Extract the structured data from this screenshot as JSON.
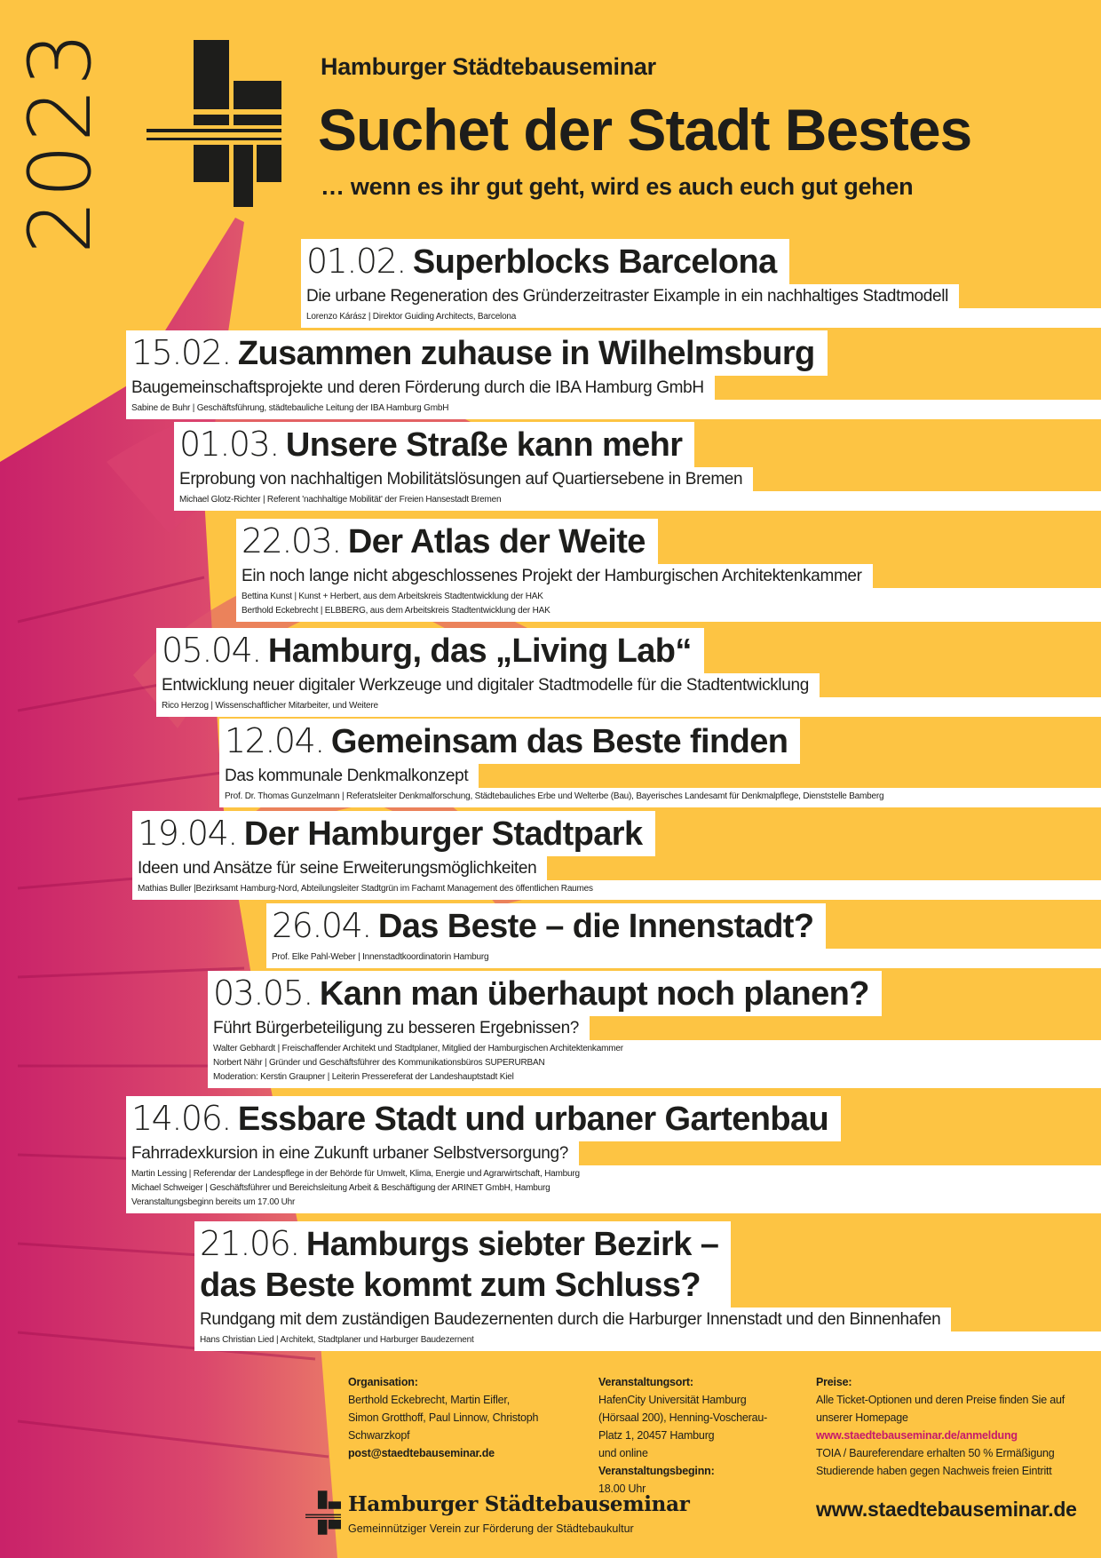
{
  "colors": {
    "background": "#fdc443",
    "structure": "#c6196b",
    "text": "#1d1d1b",
    "link": "#c6196b"
  },
  "header": {
    "year": "2023",
    "organization": "Hamburger Städtebauseminar",
    "title": "Suchet der Stadt Bestes",
    "subtitle": "… wenn es ihr gut geht, wird es auch euch gut gehen",
    "logo_icon": "city-grid-logo-icon"
  },
  "events": [
    {
      "date": "01.02.",
      "title": "Superblocks Barcelona",
      "subtitle": "Die urbane Regeneration des Gründerzeitraster Eixample in ein nachhaltiges Stadtmodell",
      "speakers": [
        "Lorenzo Kárász | Direktor Guiding Architects, Barcelona"
      ]
    },
    {
      "date": "15.02.",
      "title": "Zusammen zuhause in Wilhelmsburg",
      "subtitle": "Baugemeinschaftsprojekte und deren Förderung durch die IBA Hamburg GmbH",
      "speakers": [
        "Sabine de Buhr | Geschäftsführung, städtebauliche Leitung der IBA Hamburg GmbH"
      ]
    },
    {
      "date": "01.03.",
      "title": "Unsere Straße kann mehr",
      "subtitle": "Erprobung von nachhaltigen Mobilitätslösungen auf Quartiersebene in Bremen",
      "speakers": [
        "Michael Glotz-Richter | Referent 'nachhaltige Mobilität' der Freien Hansestadt Bremen"
      ]
    },
    {
      "date": "22.03.",
      "title": "Der Atlas der Weite",
      "subtitle": "Ein noch lange nicht abgeschlossenes Projekt der Hamburgischen Architektenkammer",
      "speakers": [
        "Bettina Kunst | Kunst + Herbert, aus dem Arbeitskreis Stadtentwicklung der HAK",
        "Berthold Eckebrecht | ELBBERG, aus dem Arbeitskreis Stadtentwicklung der HAK"
      ]
    },
    {
      "date": "05.04.",
      "title": "Hamburg, das „Living Lab“",
      "subtitle": "Entwicklung neuer digitaler Werkzeuge und digitaler Stadtmodelle für die Stadtentwicklung",
      "speakers": [
        "Rico Herzog | Wissenschaftlicher Mitarbeiter, und Weitere"
      ]
    },
    {
      "date": "12.04.",
      "title": "Gemeinsam das Beste finden",
      "subtitle": "Das kommunale Denkmalkonzept",
      "speakers": [
        "Prof. Dr. Thomas Gunzelmann | Referatsleiter Denkmalforschung, Städtebauliches Erbe und Welterbe (Bau), Bayerisches Landesamt für Denkmalpflege, Dienststelle Bamberg"
      ]
    },
    {
      "date": "19.04.",
      "title": "Der Hamburger Stadtpark",
      "subtitle": "Ideen und Ansätze für seine Erweiterungsmöglichkeiten",
      "speakers": [
        "Mathias Buller |Bezirksamt Hamburg-Nord, Abteilungsleiter Stadtgrün im Fachamt Management des öffentlichen Raumes"
      ]
    },
    {
      "date": "26.04.",
      "title": "Das Beste – die Innenstadt?",
      "subtitle": "",
      "speakers": [
        "Prof. Elke Pahl-Weber | Innenstadtkoordinatorin Hamburg"
      ]
    },
    {
      "date": "03.05.",
      "title": "Kann man überhaupt noch planen?",
      "subtitle": "Führt Bürgerbeteiligung zu besseren Ergebnissen?",
      "speakers": [
        "Walter Gebhardt | Freischaffender Architekt und Stadtplaner,  Mitglied der Hamburgischen Architektenkammer",
        "Norbert Nähr | Gründer und Geschäftsführer des Kommunikationsbüros SUPERURBAN",
        "Moderation: Kerstin Graupner | Leiterin Pressereferat der Landeshauptstadt Kiel"
      ]
    },
    {
      "date": "14.06.",
      "title": "Essbare Stadt und urbaner Gartenbau",
      "subtitle": "Fahrradexkursion in eine Zukunft urbaner Selbstversorgung?",
      "speakers": [
        "Martin Lessing | Referendar der Landespflege in der Behörde für Umwelt, Klima, Energie und Agrarwirtschaft, Hamburg",
        "Michael Schweiger | Geschäftsführer und Bereichsleitung Arbeit & Beschäftigung der ARINET GmbH, Hamburg",
        "Veranstaltungsbeginn bereits um 17.00 Uhr"
      ]
    },
    {
      "date": "21.06.",
      "title": "Hamburgs siebter Bezirk –",
      "title_line2": "das Beste kommt zum Schluss?",
      "subtitle": "Rundgang mit dem zuständigen Baudezernenten durch die Harburger Innenstadt und den Binnenhafen",
      "speakers": [
        "Hans Christian Lied | Architekt, Stadtplaner und Harburger Baudezernent"
      ]
    }
  ],
  "footer": {
    "organisation": {
      "label": "Organisation:",
      "lines": [
        "Berthold Eckebrecht, Martin Eifler,",
        "Simon Grotthoff, Paul Linnow, Christoph",
        "Schwarzkopf"
      ],
      "email": "post@staedtebauseminar.de"
    },
    "venue": {
      "label": "Veranstaltungsort:",
      "lines": [
        "HafenCity Universität Hamburg",
        "(Hörsaal 200), Henning-Voscherau-",
        "Platz 1, 20457 Hamburg",
        "und online"
      ],
      "start_label": "Veranstaltungsbeginn:",
      "start_time": "18.00 Uhr"
    },
    "prices": {
      "label": "Preise:",
      "lines": [
        "Alle Ticket-Optionen und deren Preise finden Sie auf",
        "unserer Homepage"
      ],
      "link": "www.staedtebauseminar.de/anmeldung",
      "lines2": [
        "TOIA / Baureferendare erhalten 50 % Ermäßigung",
        "Studierende haben gegen Nachweis freien Eintritt"
      ]
    },
    "brand_name": "Hamburger Städtebauseminar",
    "brand_tagline": "Gemeinnütziger Verein zur Förderung der Städtebaukultur",
    "website": "www.staedtebauseminar.de"
  }
}
